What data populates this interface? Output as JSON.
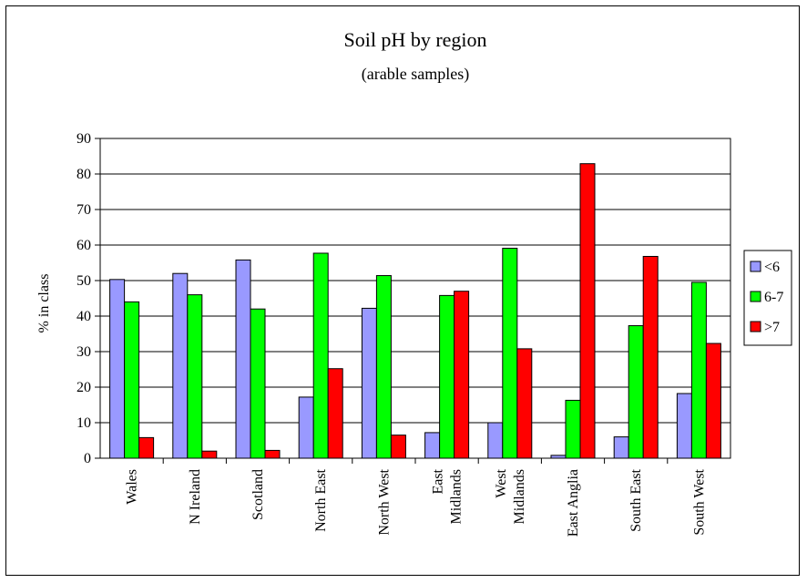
{
  "chart_data": {
    "type": "bar",
    "title": "Soil pH by region",
    "subtitle": "(arable samples)",
    "xlabel": "",
    "ylabel": "% in class",
    "ylim": [
      0,
      90
    ],
    "yticks": [
      0,
      10,
      20,
      30,
      40,
      50,
      60,
      70,
      80,
      90
    ],
    "grid": true,
    "legend": "right",
    "categories": [
      [
        "Wales"
      ],
      [
        "N Ireland"
      ],
      [
        "Scotland"
      ],
      [
        "North East"
      ],
      [
        "North West"
      ],
      [
        "East",
        "Midlands"
      ],
      [
        "West",
        "Midlands"
      ],
      [
        "East Anglia"
      ],
      [
        "South East"
      ],
      [
        "South West"
      ]
    ],
    "series": [
      {
        "name": "<6",
        "color": "#9999ff",
        "values": [
          50.3,
          52,
          55.8,
          17.2,
          42.2,
          7.2,
          10,
          0.8,
          6,
          18.2
        ]
      },
      {
        "name": "6-7",
        "color": "#00ff00",
        "values": [
          44,
          46,
          42,
          57.7,
          51.4,
          45.8,
          59.1,
          16.3,
          37.3,
          49.5
        ]
      },
      {
        "name": ">7",
        "color": "#ff0000",
        "values": [
          5.8,
          2,
          2.2,
          25.2,
          6.5,
          47,
          30.8,
          82.9,
          56.8,
          32.3
        ]
      }
    ]
  }
}
